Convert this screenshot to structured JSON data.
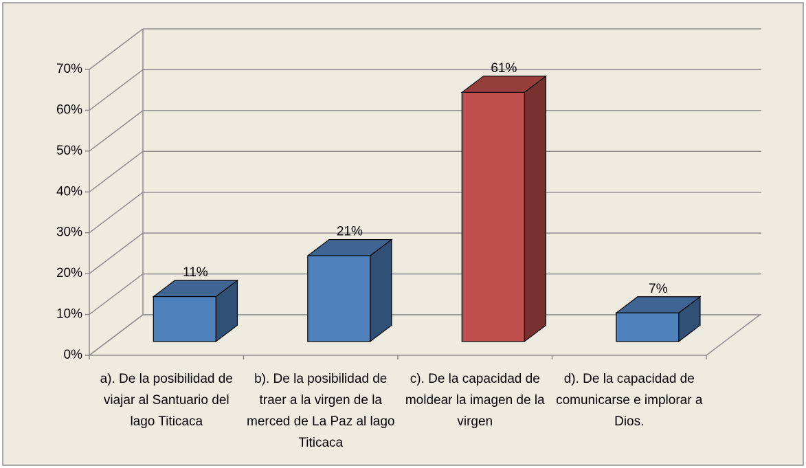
{
  "chart_data": {
    "type": "bar3d",
    "categories": [
      "a). De la posibilidad de viajar al Santuario del lago Titicaca",
      "b). De la posibilidad de traer a la virgen de la merced de La Paz al lago Titicaca",
      "c). De la capacidad de moldear la imagen de la virgen",
      "d). De la capacidad de comunicarse e implorar a Dios."
    ],
    "values": [
      11,
      21,
      61,
      7
    ],
    "value_labels": [
      "11%",
      "21%",
      "61%",
      "7%"
    ],
    "colors": [
      "#4f81bd",
      "#4f81bd",
      "#c0504d",
      "#4f81bd"
    ],
    "ylim": [
      0,
      70
    ],
    "yticks": [
      {
        "value": 0,
        "label": "0%"
      },
      {
        "value": 10,
        "label": "10%"
      },
      {
        "value": 20,
        "label": "20%"
      },
      {
        "value": 30,
        "label": "30%"
      },
      {
        "value": 40,
        "label": "40%"
      },
      {
        "value": 50,
        "label": "50%"
      },
      {
        "value": 60,
        "label": "60%"
      },
      {
        "value": 70,
        "label": "70%"
      }
    ],
    "grid": true
  }
}
